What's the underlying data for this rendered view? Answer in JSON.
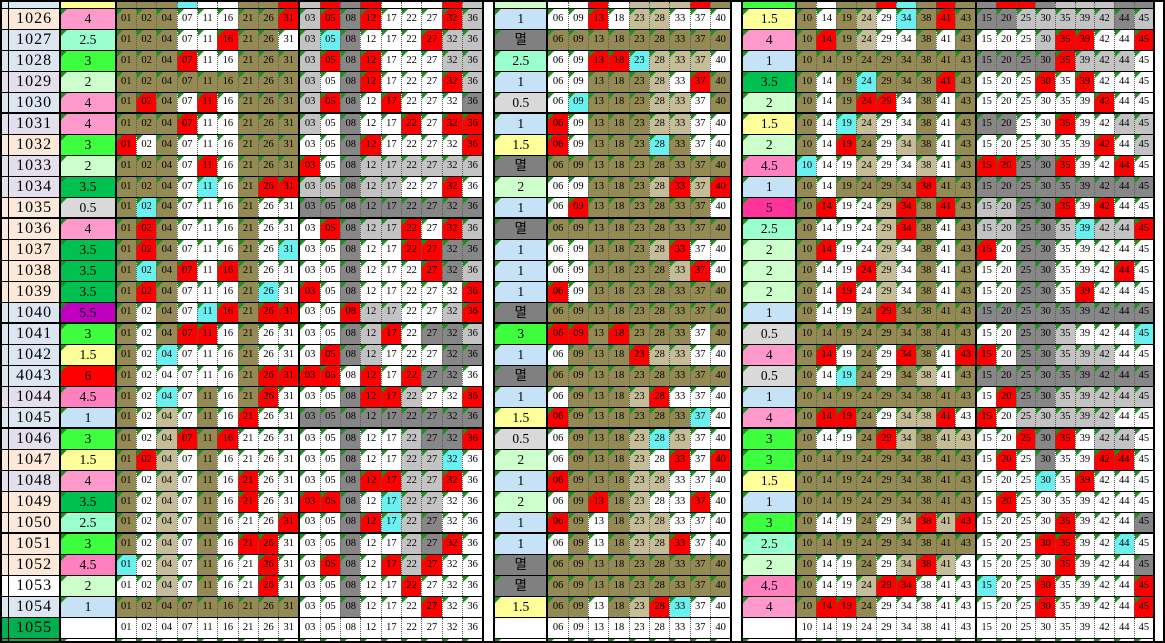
{
  "palette": {
    "W": "#FFFFFF",
    "K": "#948A54",
    "T": "#C4BD97",
    "S": "#C3C3C3",
    "D": "#878787",
    "R": "#FF0000",
    "C": "#6BF0F0"
  },
  "value_colors": {
    "0.5": "#D9D9D9",
    "1": "#C6E2F7",
    "1.5": "#FFFF99",
    "2": "#CCFFCC",
    "2.5": "#99FFCC",
    "3": "#3DFF3D",
    "3.5": "#00C050",
    "4": "#FF99CC",
    "4.5": "#FF80BF",
    "5": "#FF3399",
    "5.5": "#C000C0",
    "6": "#FF0000",
    "멸": "#808080",
    "": "#FFFFFF"
  },
  "header_colors": {
    "P": "#FCE9DA",
    "B": "#DCE6F1",
    "L": "#E3DFEC",
    "W": "#FFFFFF",
    "G": "#00B050"
  },
  "triangle_color": "#149414",
  "groups": {
    "g1": [
      "01",
      "02",
      "04",
      "07",
      "11",
      "16",
      "21",
      "26",
      "31"
    ],
    "g2": [
      "03",
      "05",
      "08",
      "12",
      "17",
      "22",
      "27",
      "32",
      "36"
    ],
    "g3": [
      "06",
      "09",
      "13",
      "18",
      "23",
      "28",
      "33",
      "37",
      "40"
    ],
    "g4": [
      "10",
      "14",
      "19",
      "24",
      "29",
      "34",
      "38",
      "41",
      "43"
    ],
    "g5": [
      "15",
      "20",
      "25",
      "30",
      "35",
      "39",
      "42",
      "44",
      "45"
    ]
  },
  "thick_after": [
    "1030",
    "1035",
    "1040",
    "1045",
    "1050"
  ],
  "top_partial": {
    "hdr": "B",
    "p1k": "1.5",
    "p2k": "2",
    "p3k": "3",
    "c1": "KKKCWWKKR",
    "c2": "SRDRWWWRS",
    "c3": "WWRWTTTRK",
    "c4": "KWKKRCKRK",
    "c5": "DRRDSSSDD"
  },
  "rows": [
    {
      "id": "1026",
      "hdr": "P",
      "p1": "4",
      "c1": "KKKWWWKKR",
      "c2": "SRDRWWWRS",
      "p2": "1",
      "c3": "WWRWTTWWW",
      "p3": "1.5",
      "c4": "KWKTWCKRK",
      "c5": "DDSSSSSDS"
    },
    {
      "id": "1027",
      "hdr": "B",
      "p1": "2.5",
      "c1": "KKKWWRKKW",
      "c2": "SCDWWWRSS",
      "p2": "멸",
      "c3": "KKKKKKKKK",
      "p3": "4",
      "c4": "KRKTWWKWK",
      "c5": "WWWSRRWWR"
    },
    {
      "id": "1028",
      "hdr": "B",
      "p1": "3",
      "c1": "KKKRWWKKK",
      "c2": "SRDRWWWSS",
      "p2": "2.5",
      "c3": "WWRRCTTTW",
      "p3": "1",
      "c4": "KKKKKKKKK",
      "c5": "DDDDRSSSW"
    },
    {
      "id": "1029",
      "hdr": "L",
      "p1": "2",
      "c1": "KKKKKKKKK",
      "c2": "SWDRWWWRS",
      "p2": "1",
      "c3": "WWKKKTWRK",
      "p3": "3.5",
      "c4": "KWKCKKKRK",
      "c5": "WWWRWRWWW"
    },
    {
      "id": "1030",
      "hdr": "B",
      "p1": "4",
      "c1": "KRKWRWKKK",
      "c2": "SRDWRWWWD",
      "p2": "0.5",
      "c3": "WCKKKTTWK",
      "p3": "2",
      "c4": "KWKRRWKWK",
      "c5": "WWWWWWRWW"
    },
    {
      "id": "1031",
      "hdr": "L",
      "p1": "4",
      "c1": "KKKRWWKKK",
      "c2": "SWDWWRWRR",
      "p2": "1",
      "c3": "RWKKKTTWW",
      "p3": "1.5",
      "c4": "KWCTWWKWK",
      "c5": "DDWWRWWSS"
    },
    {
      "id": "1032",
      "hdr": "P",
      "p1": "3",
      "c1": "RWKWWWKKK",
      "c2": "WWDRWWWWR",
      "p2": "1.5",
      "c3": "RWKKKCKWW",
      "p3": "2",
      "c4": "KWRKWTKWK",
      "c5": "WWWWWWRWS"
    },
    {
      "id": "1033",
      "hdr": "L",
      "p1": "2",
      "c1": "KKKWRWKKK",
      "c2": "RWDSSSSSS",
      "p2": "멸",
      "c3": "KKKKKKKKK",
      "p3": "4.5",
      "c4": "CWWTWWTWK",
      "c5": "RRDDRWWRW"
    },
    {
      "id": "1034",
      "hdr": "L",
      "p1": "3.5",
      "c1": "KKKWCWKRR",
      "c2": "SSDSSWWRW",
      "p2": "2",
      "c3": "WWKKKTRTR",
      "p3": "1",
      "c4": "KWKKKKRKK",
      "c5": "DDDDDDDDD"
    },
    {
      "id": "1035",
      "hdr": "P",
      "p1": "0.5",
      "c1": "KCKWWWKWW",
      "c2": "DDDDDDDDD",
      "p2": "1",
      "c3": "WRKKKKKKW",
      "p3": "5",
      "c4": "KRWWTRKRK",
      "c5": "SSDDRWRWW"
    },
    {
      "id": "1036",
      "hdr": "P",
      "p1": "4",
      "c1": "KRKWWWKWW",
      "c2": "WRDSSRWRS",
      "p2": "멸",
      "c3": "KKKKKKKKK",
      "p3": "2.5",
      "c4": "KWWWTRKWK",
      "c5": "SSDDSCSSR"
    },
    {
      "id": "1037",
      "hdr": "P",
      "p1": "3.5",
      "c1": "KRKWWWKWC",
      "c2": "WWDWWRRDD",
      "p2": "1",
      "c3": "WWKKKTRWW",
      "p3": "2",
      "c4": "KRWWTWKWK",
      "c5": "RWDDWWWWW"
    },
    {
      "id": "1038",
      "hdr": "P",
      "p1": "3.5",
      "c1": "KCKRWRKWW",
      "c2": "WWDWWWRDS",
      "p2": "1",
      "c3": "WWKKKKTRW",
      "p3": "2",
      "c4": "KWWRTWKWK",
      "c5": "WWDDWWWRW"
    },
    {
      "id": "1039",
      "hdr": "P",
      "p1": "3.5",
      "c1": "KRKWWWKCW",
      "c2": "RWDWWWWWR",
      "p2": "1",
      "c3": "RWKKKKKKK",
      "p3": "2",
      "c4": "KWRWTWKWK",
      "c5": "WWDDWRWWW"
    },
    {
      "id": "1040",
      "hdr": "B",
      "p1": "5.5",
      "c1": "KWKWCRKRR",
      "c2": "WWRSSWWSR",
      "p2": "멸",
      "c3": "KKKKKKKKK",
      "p3": "1",
      "c4": "KWWKRKKKK",
      "c5": "DDDDDDDDD"
    },
    {
      "id": "1041",
      "hdr": "B",
      "p1": "3",
      "c1": "KWKRRWKWW",
      "c2": "WWDSRWDDS",
      "p2": "3",
      "c3": "RRKRKKKWK",
      "p3": "0.5",
      "c4": "KKKKKKKKK",
      "c5": "WWDDSWWWC"
    },
    {
      "id": "1042",
      "hdr": "B",
      "p1": "1.5",
      "c1": "KWCWWWKWW",
      "c2": "WRDSWWWDD",
      "p2": "1",
      "c3": "WKKKRTTWW",
      "p3": "4",
      "c4": "KRWKWRKWR",
      "c5": "RWDDSSSWW"
    },
    {
      "id": "4043",
      "hdr": "B",
      "p1": "6",
      "c1": "KWWWWWKRR",
      "c2": "RRWRWRDDW",
      "p2": "멸",
      "c3": "KKKKKKKKK",
      "p3": "0.5",
      "c4": "KWCKWKTWK",
      "c5": "DDDDDDDDD"
    },
    {
      "id": "1044",
      "hdr": "L",
      "p1": "4.5",
      "c1": "KWCWKWKRW",
      "c2": "WWDRRSWWR",
      "p2": "1",
      "c3": "WKKKTRWWW",
      "p3": "1",
      "c4": "KKKKKKKKK",
      "c5": "WRDDSSSSS"
    },
    {
      "id": "1045",
      "hdr": "B",
      "p1": "1",
      "c1": "KWTWKWRWW",
      "c2": "DDDDDDDDD",
      "p2": "1.5",
      "c3": "RKKKKKKCW",
      "p3": "4",
      "c4": "KRRKWTTRW",
      "c5": "RWSSSSSWW"
    },
    {
      "id": "1046",
      "hdr": "L",
      "p1": "3",
      "c1": "KWTRKRWWW",
      "c2": "WWDWWSDDR",
      "p2": "0.5",
      "c3": "WKKKTCTWW",
      "p3": "3",
      "c4": "KWWKRTKTT",
      "c5": "WWRDRWSSW"
    },
    {
      "id": "1047",
      "hdr": "P",
      "p1": "1.5",
      "c1": "KRTWKWWWW",
      "c2": "WWDWWSSCW",
      "p2": "2",
      "c3": "WKKKTWRWR",
      "p3": "3",
      "c4": "KKKKKKKKK",
      "c5": "WRWDWWRRW"
    },
    {
      "id": "1048",
      "hdr": "L",
      "p1": "4",
      "c1": "KWTWKWRWW",
      "c2": "WWDRRSSRW",
      "p2": "1",
      "c3": "RKKKTTWWW",
      "p3": "1.5",
      "c4": "KKKKKKKKK",
      "c5": "WWWCWRWWW"
    },
    {
      "id": "1049",
      "hdr": "P",
      "p1": "3.5",
      "c1": "KWTWKWRWW",
      "c2": "RRDWCSSWW",
      "p2": "2",
      "c3": "WKRKTWWRW",
      "p3": "1",
      "c4": "KKKKKKKKK",
      "c5": "WRWWWWWWW"
    },
    {
      "id": "1050",
      "hdr": "P",
      "p1": "2.5",
      "c1": "KWTWKWWWR",
      "c2": "WWDRCSDWW",
      "p2": "1",
      "c3": "RKWKTTWWW",
      "p3": "3",
      "c4": "KWWKWTRTR",
      "c5": "WWWWRWWWD"
    },
    {
      "id": "1051",
      "hdr": "P",
      "p1": "3",
      "c1": "KWTWKWRRW",
      "c2": "WWDWWSDRW",
      "p2": "1",
      "c3": "WKWKTTRWW",
      "p3": "2.5",
      "c4": "KKKKKKKKK",
      "c5": "WWWRRWWCW"
    },
    {
      "id": "1052",
      "hdr": "P",
      "p1": "4.5",
      "c1": "CWTWKWWRW",
      "c2": "WRDWRSRWW",
      "p2": "멸",
      "c3": "KKKKKKKKK",
      "p3": "2",
      "c4": "KWWKWTRTW",
      "c5": "WWWWRWWWD"
    },
    {
      "id": "1053",
      "hdr": "W",
      "p1": "2",
      "c1": "WWTWKWWRW",
      "c2": "WWDWWRWWW",
      "p2": "멸",
      "c3": "KKKKKKKKK",
      "p3": "4.5",
      "c4": "KWWTRRWWW",
      "c5": "CWWRWWWWR"
    },
    {
      "id": "1054",
      "hdr": "B",
      "p1": "1",
      "c1": "KKKKKKKKK",
      "c2": "WWDWWWRWW",
      "p2": "1.5",
      "c3": "KKWKTRCWW",
      "p3": "4",
      "c4": "KRRKWWWWW",
      "c5": "WWWRWWWWR"
    },
    {
      "id": "1055",
      "hdr": "G",
      "p1": "",
      "c1": "WWWWWWWWW",
      "c2": "WWWWWWWWW",
      "p2": "",
      "c3": "WWWWWWWWW",
      "p3": "",
      "c4": "WWWWWWWWW",
      "c5": "WWWWWWWWW"
    }
  ]
}
